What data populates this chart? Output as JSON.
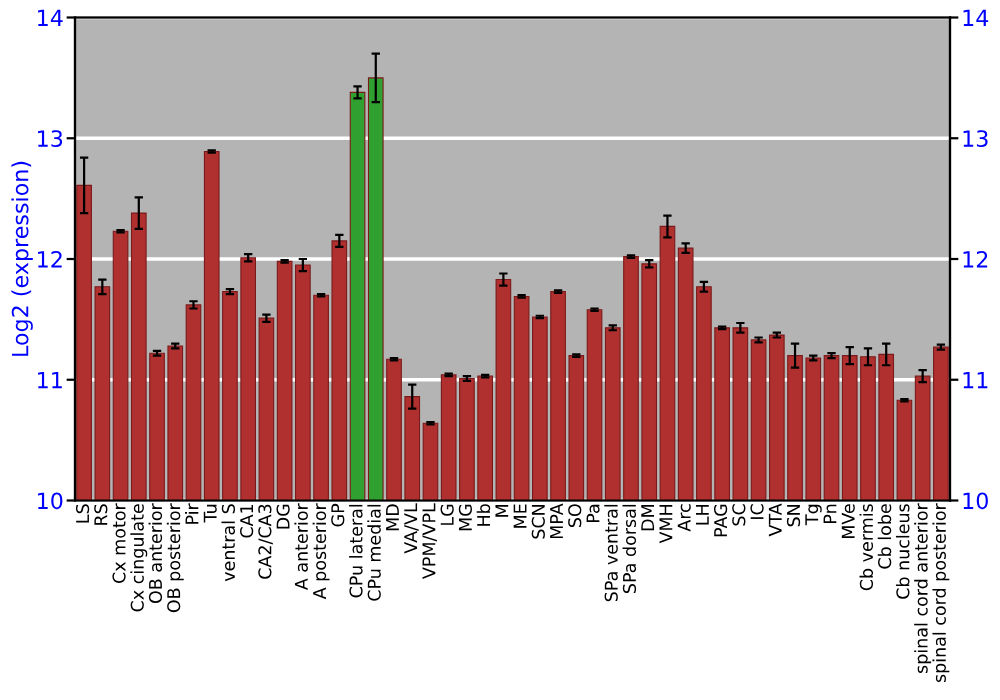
{
  "chart_data": {
    "type": "bar",
    "ylabel": "Log2 (expression)",
    "categories": [
      "LS",
      "RS",
      "Cx motor",
      "Cx cingulate",
      "OB anterior",
      "OB posterior",
      "Pir",
      "Tu",
      "ventral S",
      "CA1",
      "CA2/CA3",
      "DG",
      "A anterior",
      "A posterior",
      "GP",
      "CPu lateral",
      "CPu medial",
      "MD",
      "VA/VL",
      "VPM/VPL",
      "LG",
      "MG",
      "Hb",
      "M",
      "ME",
      "SCN",
      "MPA",
      "SO",
      "Pa",
      "SPa ventral",
      "SPa dorsal",
      "DM",
      "VMH",
      "Arc",
      "LH",
      "PAG",
      "SC",
      "IC",
      "VTA",
      "SN",
      "Tg",
      "Pn",
      "MVe",
      "Cb vermis",
      "Cb lobe",
      "Cb nucleus",
      "spinal cord anterior",
      "spinal cord posterior"
    ],
    "values": [
      12.61,
      11.77,
      12.23,
      12.38,
      11.22,
      11.28,
      11.62,
      12.89,
      11.73,
      12.01,
      11.51,
      11.98,
      11.95,
      11.7,
      12.15,
      13.38,
      13.5,
      11.17,
      10.86,
      10.64,
      11.04,
      11.01,
      11.03,
      11.83,
      11.69,
      11.52,
      11.73,
      11.2,
      11.58,
      11.43,
      12.02,
      11.96,
      12.27,
      12.09,
      11.77,
      11.43,
      11.43,
      11.33,
      11.37,
      11.2,
      11.18,
      11.2,
      11.2,
      11.19,
      11.21,
      10.83,
      11.03,
      11.27
    ],
    "errors": [
      0.23,
      0.06,
      0.01,
      0.13,
      0.02,
      0.02,
      0.03,
      0.01,
      0.02,
      0.03,
      0.03,
      0.01,
      0.05,
      0.01,
      0.05,
      0.05,
      0.2,
      0.01,
      0.1,
      0.01,
      0.01,
      0.02,
      0.01,
      0.05,
      0.01,
      0.01,
      0.01,
      0.01,
      0.01,
      0.02,
      0.01,
      0.03,
      0.09,
      0.04,
      0.04,
      0.01,
      0.04,
      0.02,
      0.02,
      0.1,
      0.02,
      0.02,
      0.07,
      0.07,
      0.09,
      0.01,
      0.05,
      0.02
    ],
    "colors": [
      "#b03030",
      "#b03030",
      "#b03030",
      "#b03030",
      "#b03030",
      "#b03030",
      "#b03030",
      "#b03030",
      "#b03030",
      "#b03030",
      "#b03030",
      "#b03030",
      "#b03030",
      "#b03030",
      "#b03030",
      "#30a030",
      "#30a030",
      "#b03030",
      "#b03030",
      "#b03030",
      "#b03030",
      "#b03030",
      "#b03030",
      "#b03030",
      "#b03030",
      "#b03030",
      "#b03030",
      "#b03030",
      "#b03030",
      "#b03030",
      "#b03030",
      "#b03030",
      "#b03030",
      "#b03030",
      "#b03030",
      "#b03030",
      "#b03030",
      "#b03030",
      "#b03030",
      "#b03030",
      "#b03030",
      "#b03030",
      "#b03030",
      "#b03030",
      "#b03030",
      "#b03030",
      "#b03030",
      "#b03030"
    ],
    "ylim": [
      10,
      14
    ],
    "yticks": [
      10,
      11,
      12,
      13,
      14
    ],
    "y2lim": [
      10,
      14
    ],
    "y2ticks": [
      10,
      11,
      12,
      13,
      14
    ],
    "grid": "y"
  }
}
